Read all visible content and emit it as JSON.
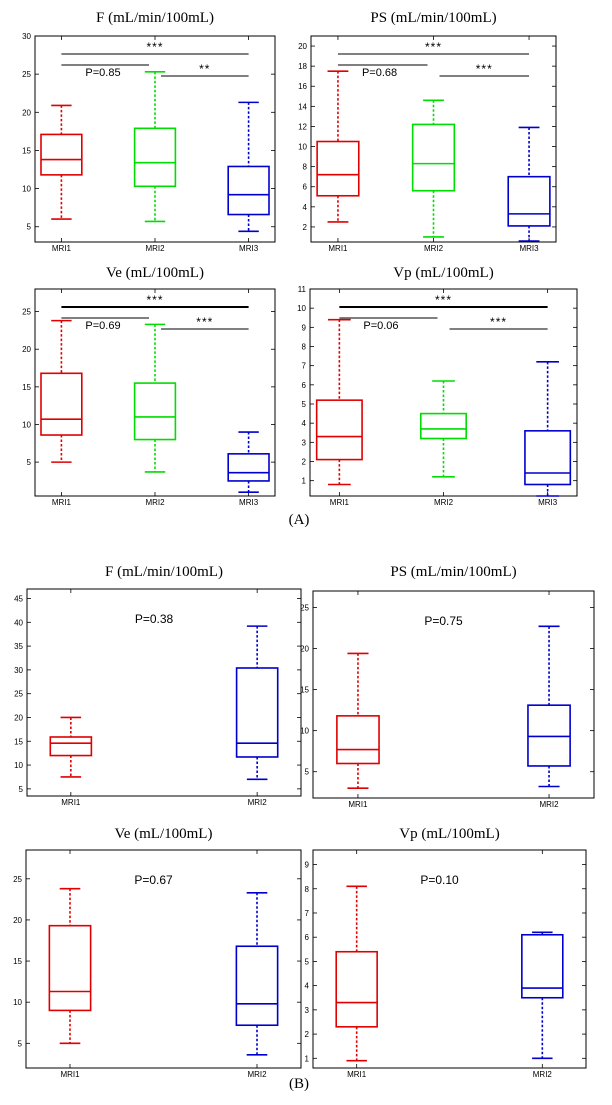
{
  "figure": {
    "panel_a_label": "(A)",
    "panel_b_label": "(B)"
  },
  "chart_data": [
    {
      "type": "box",
      "panel": "A",
      "title": "F (mL/min/100mL)",
      "categories": [
        "MRI1",
        "MRI2",
        "MRI3"
      ],
      "colors": [
        "#e00000",
        "#00dd00",
        "#0000cc"
      ],
      "boxes": [
        {
          "min": 6.0,
          "q1": 11.8,
          "median": 13.8,
          "q3": 17.1,
          "max": 20.9
        },
        {
          "min": 5.7,
          "q1": 10.3,
          "median": 13.4,
          "q3": 17.9,
          "max": 25.3
        },
        {
          "min": 4.4,
          "q1": 6.6,
          "median": 9.2,
          "q3": 12.9,
          "max": 21.3
        }
      ],
      "ylim": [
        3,
        30
      ],
      "yticks": [
        5,
        10,
        15,
        20,
        25,
        30
      ],
      "annotations": [
        {
          "type": "bracket",
          "from": 0,
          "to": 2,
          "level": 0,
          "label": "***"
        },
        {
          "type": "bracket",
          "from": 0,
          "to": 1,
          "level": 1,
          "label": "P=0.85"
        },
        {
          "type": "bracket",
          "from": 1,
          "to": 2,
          "level": 2,
          "label": "**"
        }
      ]
    },
    {
      "type": "box",
      "panel": "A",
      "title": "PS (mL/min/100mL)",
      "categories": [
        "MRI1",
        "MRI2",
        "MRI3"
      ],
      "colors": [
        "#e00000",
        "#00dd00",
        "#0000cc"
      ],
      "boxes": [
        {
          "min": 2.5,
          "q1": 5.1,
          "median": 7.2,
          "q3": 10.5,
          "max": 17.5
        },
        {
          "min": 1.0,
          "q1": 5.6,
          "median": 8.3,
          "q3": 12.2,
          "max": 14.6
        },
        {
          "min": 0.6,
          "q1": 2.1,
          "median": 3.3,
          "q3": 7.0,
          "max": 11.9
        }
      ],
      "ylim": [
        0.5,
        21
      ],
      "yticks": [
        2,
        4,
        6,
        8,
        10,
        12,
        14,
        16,
        18,
        20
      ],
      "annotations": [
        {
          "type": "bracket",
          "from": 0,
          "to": 2,
          "level": 0,
          "label": "***"
        },
        {
          "type": "bracket",
          "from": 0,
          "to": 1,
          "level": 1,
          "label": "P=0.68"
        },
        {
          "type": "bracket",
          "from": 1,
          "to": 2,
          "level": 2,
          "label": "***"
        }
      ]
    },
    {
      "type": "box",
      "panel": "A",
      "title": "Ve (mL/100mL)",
      "categories": [
        "MRI1",
        "MRI2",
        "MRI3"
      ],
      "colors": [
        "#e00000",
        "#00dd00",
        "#0000cc"
      ],
      "boxes": [
        {
          "min": 5.0,
          "q1": 8.6,
          "median": 10.7,
          "q3": 16.8,
          "max": 23.8
        },
        {
          "min": 3.7,
          "q1": 8.0,
          "median": 11.0,
          "q3": 15.5,
          "max": 23.3
        },
        {
          "min": 1.0,
          "q1": 2.5,
          "median": 3.6,
          "q3": 6.1,
          "max": 9.0
        }
      ],
      "ylim": [
        0.5,
        28
      ],
      "yticks": [
        5,
        10,
        15,
        20,
        25
      ],
      "annotations": [
        {
          "type": "bracket",
          "from": 0,
          "to": 2,
          "level": 0,
          "label": "***"
        },
        {
          "type": "bracket",
          "from": 0,
          "to": 1,
          "level": 1,
          "label": "P=0.69"
        },
        {
          "type": "bracket",
          "from": 1,
          "to": 2,
          "level": 2,
          "label": "***"
        }
      ]
    },
    {
      "type": "box",
      "panel": "A",
      "title": "Vp (mL/100mL)",
      "categories": [
        "MRI1",
        "MRI2",
        "MRI3"
      ],
      "colors": [
        "#e00000",
        "#00dd00",
        "#0000cc"
      ],
      "boxes": [
        {
          "min": 0.8,
          "q1": 2.1,
          "median": 3.3,
          "q3": 5.2,
          "max": 9.4
        },
        {
          "min": 1.2,
          "q1": 3.2,
          "median": 3.7,
          "q3": 4.5,
          "max": 6.2
        },
        {
          "min": 0.2,
          "q1": 0.8,
          "median": 1.4,
          "q3": 3.6,
          "max": 7.2
        }
      ],
      "ylim": [
        0.2,
        11
      ],
      "yticks": [
        1,
        2,
        3,
        4,
        5,
        6,
        7,
        8,
        9,
        10,
        11
      ],
      "annotations": [
        {
          "type": "bracket",
          "from": 0,
          "to": 2,
          "level": 0,
          "label": "***"
        },
        {
          "type": "bracket",
          "from": 0,
          "to": 1,
          "level": 1,
          "label": "P=0.06"
        },
        {
          "type": "bracket",
          "from": 1,
          "to": 2,
          "level": 2,
          "label": "***"
        }
      ]
    },
    {
      "type": "box",
      "panel": "B",
      "title": "F (mL/min/100mL)",
      "categories": [
        "MRI1",
        "MRI2"
      ],
      "colors": [
        "#e00000",
        "#0000cc"
      ],
      "boxes": [
        {
          "min": 7.5,
          "q1": 12.0,
          "median": 14.6,
          "q3": 15.9,
          "max": 20.0
        },
        {
          "min": 7.0,
          "q1": 11.7,
          "median": 14.6,
          "q3": 30.4,
          "max": 39.2
        }
      ],
      "ylim": [
        3.5,
        47
      ],
      "yticks": [
        5,
        10,
        15,
        20,
        25,
        30,
        35,
        40,
        45
      ],
      "annotations": [
        {
          "type": "text",
          "label": "P=0.38"
        }
      ]
    },
    {
      "type": "box",
      "panel": "B",
      "title": "PS (mL/min/100mL)",
      "categories": [
        "MRI1",
        "MRI2"
      ],
      "colors": [
        "#e00000",
        "#0000cc"
      ],
      "boxes": [
        {
          "min": 3.0,
          "q1": 6.0,
          "median": 7.7,
          "q3": 11.8,
          "max": 19.4
        },
        {
          "min": 3.2,
          "q1": 5.7,
          "median": 9.3,
          "q3": 13.1,
          "max": 22.7
        }
      ],
      "ylim": [
        1.8,
        27
      ],
      "yticks": [
        5,
        10,
        15,
        20,
        25
      ],
      "annotations": [
        {
          "type": "text",
          "label": "P=0.75"
        }
      ]
    },
    {
      "type": "box",
      "panel": "B",
      "title": "Ve (mL/100mL)",
      "categories": [
        "MRI1",
        "MRI2"
      ],
      "colors": [
        "#e00000",
        "#0000cc"
      ],
      "boxes": [
        {
          "min": 5.0,
          "q1": 9.0,
          "median": 11.3,
          "q3": 19.3,
          "max": 23.8
        },
        {
          "min": 3.6,
          "q1": 7.2,
          "median": 9.8,
          "q3": 16.8,
          "max": 23.3
        }
      ],
      "ylim": [
        2,
        28.5
      ],
      "yticks": [
        5,
        10,
        15,
        20,
        25
      ],
      "annotations": [
        {
          "type": "text",
          "label": "P=0.67"
        }
      ]
    },
    {
      "type": "box",
      "panel": "B",
      "title": "Vp (mL/100mL)",
      "categories": [
        "MRI1",
        "MRI2"
      ],
      "colors": [
        "#e00000",
        "#0000cc"
      ],
      "boxes": [
        {
          "min": 0.9,
          "q1": 2.3,
          "median": 3.3,
          "q3": 5.4,
          "max": 8.1
        },
        {
          "min": 1.0,
          "q1": 3.5,
          "median": 3.9,
          "q3": 6.1,
          "max": 6.2
        }
      ],
      "ylim": [
        0.6,
        9.6
      ],
      "yticks": [
        1,
        2,
        3,
        4,
        5,
        6,
        7,
        8,
        9
      ],
      "annotations": [
        {
          "type": "text",
          "label": "P=0.10"
        }
      ]
    }
  ]
}
